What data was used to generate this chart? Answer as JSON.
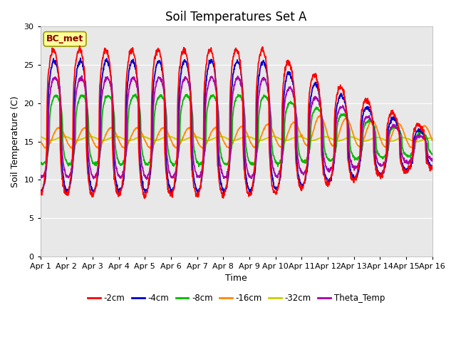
{
  "title": "Soil Temperatures Set A",
  "xlabel": "Time",
  "ylabel": "Soil Temperature (C)",
  "ylim": [
    0,
    30
  ],
  "yticks": [
    0,
    5,
    10,
    15,
    20,
    25,
    30
  ],
  "xlim": [
    0,
    15
  ],
  "xtick_labels": [
    "Apr 1",
    "Apr 2",
    "Apr 3",
    "Apr 4",
    "Apr 5",
    "Apr 6",
    "Apr 7",
    "Apr 8",
    "Apr 9",
    "Apr 10",
    "Apr 11",
    "Apr 12",
    "Apr 13",
    "Apr 14",
    "Apr 15",
    "Apr 16"
  ],
  "annotation": "BC_met",
  "annotation_color": "#8B0000",
  "annotation_bg": "#FFFF99",
  "annotation_edge": "#999900",
  "series_colors": {
    "-2cm": "#FF0000",
    "-4cm": "#0000CC",
    "-8cm": "#00BB00",
    "-16cm": "#FF8800",
    "-32cm": "#CCCC00",
    "Theta_Temp": "#AA00AA"
  },
  "legend_colors": [
    "#FF0000",
    "#0000CC",
    "#00BB00",
    "#FF8800",
    "#CCCC00",
    "#AA00AA"
  ],
  "legend_labels": [
    "-2cm",
    "-4cm",
    "-8cm",
    "-16cm",
    "-32cm",
    "Theta_Temp"
  ],
  "background_color": "#E8E8E8",
  "title_fontsize": 12,
  "axis_label_fontsize": 9,
  "tick_fontsize": 8
}
